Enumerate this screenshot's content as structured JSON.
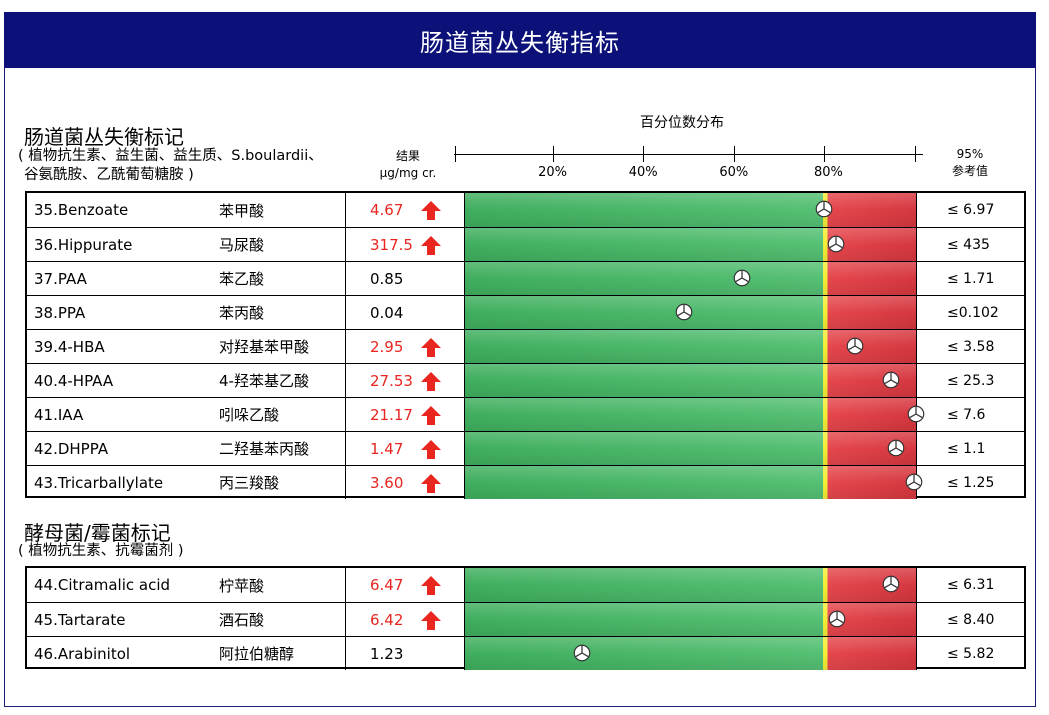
{
  "header": {
    "title": "肠道菌丛失衡指标"
  },
  "section1": {
    "title": "肠道菌丛失衡标记",
    "subtitle_line1": "( 植物抗生素、益生菌、益生质、S.boulardii、",
    "subtitle_line2": "谷氨酰胺、乙酰葡萄糖胺 )",
    "result_header_line1": "结果",
    "result_header_line2": "µg/mg cr.",
    "axis_title": "百分位数分布",
    "ticks": [
      "20%",
      "40%",
      "60%",
      "80%"
    ],
    "ref_header_line1": "95%",
    "ref_header_line2": "参考值",
    "rows": [
      {
        "name": "35.Benzoate",
        "cn": "苯甲酸",
        "value": "4.67",
        "high": true,
        "percentile": 79.5,
        "ref": "≤ 6.97"
      },
      {
        "name": "36.Hippurate",
        "cn": "马尿酸",
        "value": "317.5",
        "high": true,
        "percentile": 82.2,
        "ref": "≤  435"
      },
      {
        "name": "37.PAA",
        "cn": "苯乙酸",
        "value": "0.85",
        "high": false,
        "percentile": 61.5,
        "ref": "≤ 1.71"
      },
      {
        "name": "38.PPA",
        "cn": "苯丙酸",
        "value": "0.04",
        "high": false,
        "percentile": 48.5,
        "ref": "≤0.102"
      },
      {
        "name": "39.4-HBA",
        "cn": "对羟基苯甲酸",
        "value": "2.95",
        "high": true,
        "percentile": 86.5,
        "ref": "≤ 3.58"
      },
      {
        "name": "40.4-HPAA",
        "cn": "4-羟苯基乙酸",
        "value": "27.53",
        "high": true,
        "percentile": 94.5,
        "ref": "≤ 25.3"
      },
      {
        "name": "41.IAA",
        "cn": "吲哚乙酸",
        "value": "21.17",
        "high": true,
        "percentile": 100,
        "ref": "≤  7.6"
      },
      {
        "name": "42.DHPPA",
        "cn": "二羟基苯丙酸",
        "value": "1.47",
        "high": true,
        "percentile": 95.5,
        "ref": "≤  1.1"
      },
      {
        "name": "43.Tricarballylate",
        "cn": "丙三羧酸",
        "value": "3.60",
        "high": true,
        "percentile": 99.5,
        "ref": "≤ 1.25"
      }
    ]
  },
  "section2": {
    "title": "酵母菌/霉菌标记",
    "subtitle": "( 植物抗生素、抗霉菌剂 )",
    "rows": [
      {
        "name": "44.Citramalic acid",
        "cn": "柠苹酸",
        "value": "6.47",
        "high": true,
        "percentile": 94.5,
        "ref": "≤ 6.31"
      },
      {
        "name": "45.Tartarate",
        "cn": "酒石酸",
        "value": "6.42",
        "high": true,
        "percentile": 82.5,
        "ref": "≤ 8.40"
      },
      {
        "name": "46.Arabinitol",
        "cn": "阿拉伯糖醇",
        "value": "1.23",
        "high": false,
        "percentile": 26,
        "ref": "≤ 5.82"
      }
    ]
  },
  "colors": {
    "header_bg": "#0b1178",
    "high_value": "#e8251f",
    "bar_green": "#4fb96c",
    "bar_red": "#e0434a",
    "cutoff_yellow": "#f2ee38"
  }
}
